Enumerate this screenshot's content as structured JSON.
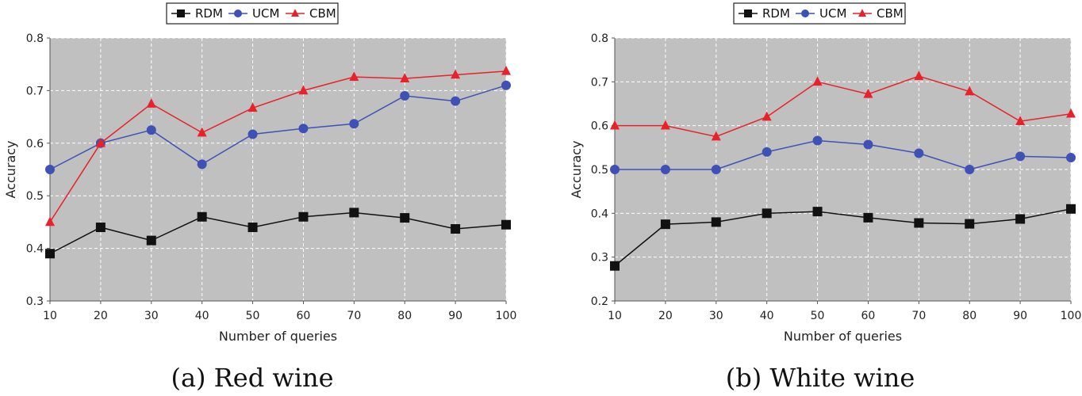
{
  "chart_data": [
    {
      "type": "line",
      "caption": "(a) Red wine",
      "xlabel": "Number of queries",
      "ylabel": "Accuracy",
      "x": [
        10,
        20,
        30,
        40,
        50,
        60,
        70,
        80,
        90,
        100
      ],
      "xlim": [
        10,
        100
      ],
      "ylim": [
        0.3,
        0.8
      ],
      "xticks": [
        "10",
        "20",
        "30",
        "40",
        "50",
        "60",
        "70",
        "80",
        "90",
        "100"
      ],
      "yticks": [
        "0.3",
        "0.4",
        "0.5",
        "0.6",
        "0.7",
        "0.8"
      ],
      "grid": true,
      "legend_position": "top",
      "series": [
        {
          "name": "RDM",
          "color": "#111111",
          "marker": "square",
          "values": [
            0.39,
            0.44,
            0.415,
            0.46,
            0.44,
            0.46,
            0.468,
            0.458,
            0.437,
            0.445
          ]
        },
        {
          "name": "UCM",
          "color": "#3f51b5",
          "marker": "circle",
          "values": [
            0.55,
            0.6,
            0.625,
            0.56,
            0.617,
            0.628,
            0.637,
            0.69,
            0.68,
            0.71
          ]
        },
        {
          "name": "CBM",
          "color": "#e8212a",
          "marker": "triangle",
          "values": [
            0.45,
            0.6,
            0.675,
            0.62,
            0.667,
            0.7,
            0.726,
            0.723,
            0.73,
            0.737
          ]
        }
      ]
    },
    {
      "type": "line",
      "caption": "(b) White wine",
      "xlabel": "Number of queries",
      "ylabel": "Accuracy",
      "x": [
        10,
        20,
        30,
        40,
        50,
        60,
        70,
        80,
        90,
        100
      ],
      "xlim": [
        10,
        100
      ],
      "ylim": [
        0.2,
        0.8
      ],
      "xticks": [
        "10",
        "20",
        "30",
        "40",
        "50",
        "60",
        "70",
        "80",
        "90",
        "100"
      ],
      "yticks": [
        "0.2",
        "0.3",
        "0.4",
        "0.5",
        "0.6",
        "0.7",
        "0.8"
      ],
      "grid": true,
      "legend_position": "top",
      "series": [
        {
          "name": "RDM",
          "color": "#111111",
          "marker": "square",
          "values": [
            0.28,
            0.375,
            0.38,
            0.4,
            0.404,
            0.39,
            0.378,
            0.376,
            0.387,
            0.41
          ]
        },
        {
          "name": "UCM",
          "color": "#3f51b5",
          "marker": "circle",
          "values": [
            0.5,
            0.5,
            0.5,
            0.54,
            0.566,
            0.557,
            0.537,
            0.5,
            0.53,
            0.527
          ]
        },
        {
          "name": "CBM",
          "color": "#e8212a",
          "marker": "triangle",
          "values": [
            0.6,
            0.6,
            0.575,
            0.62,
            0.7,
            0.672,
            0.713,
            0.678,
            0.61,
            0.627
          ]
        }
      ]
    }
  ]
}
